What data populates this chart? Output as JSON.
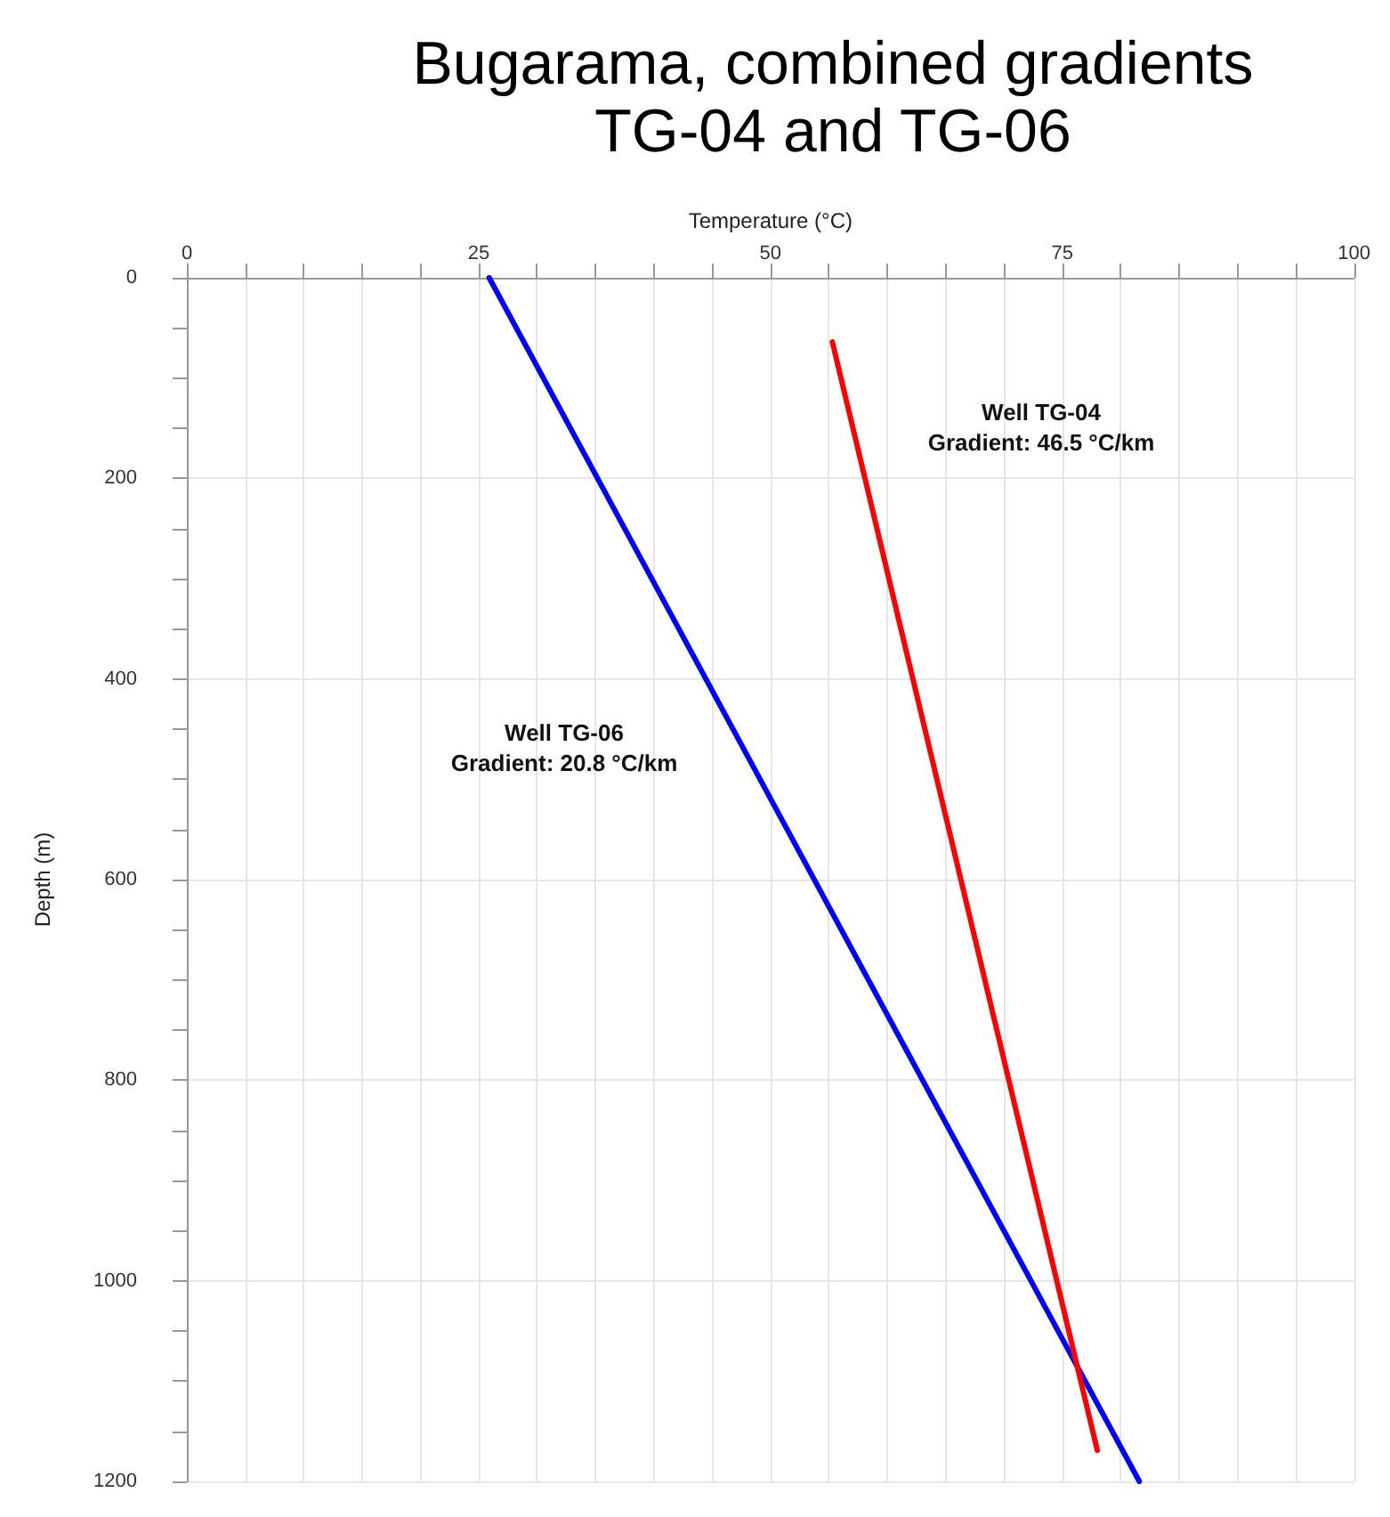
{
  "chart_data": {
    "type": "line",
    "title": "Bugarama, combined gradients\nTG-04 and TG-06",
    "xlabel": "Temperature (°C)",
    "ylabel": "Depth (m)",
    "xlim": [
      0,
      100
    ],
    "ylim": [
      1200,
      0
    ],
    "xticks": [
      0,
      {
        "value": 5,
        "label": null
      },
      {
        "value": 10,
        "label": null
      },
      {
        "value": 15,
        "label": null
      },
      {
        "value": 20,
        "label": null
      },
      25,
      {
        "value": 30,
        "label": null
      },
      {
        "value": 35,
        "label": null
      },
      {
        "value": 40,
        "label": null
      },
      {
        "value": 45,
        "label": null
      },
      50,
      {
        "value": 55,
        "label": null
      },
      {
        "value": 60,
        "label": null
      },
      {
        "value": 65,
        "label": null
      },
      {
        "value": 70,
        "label": null
      },
      75,
      {
        "value": 80,
        "label": null
      },
      {
        "value": 85,
        "label": null
      },
      {
        "value": 90,
        "label": null
      },
      {
        "value": 95,
        "label": null
      },
      100
    ],
    "yticks": [
      0,
      200,
      400,
      600,
      800,
      1000,
      1200
    ],
    "grid": true,
    "marker": "none",
    "line_style": "solid",
    "series": [
      {
        "color": "#0000ff",
        "x": [
          25.9,
          81.6
        ],
        "values": [
          0,
          1200
        ]
      },
      {
        "color": "#ff0000",
        "x": [
          55.3,
          78.0
        ],
        "values": [
          64,
          1169
        ]
      }
    ],
    "annotations": [
      "Well TG-04\nGradient: 46.5 °C/km",
      "Well TG-06\nGradient: 20.8 °C/km"
    ]
  }
}
